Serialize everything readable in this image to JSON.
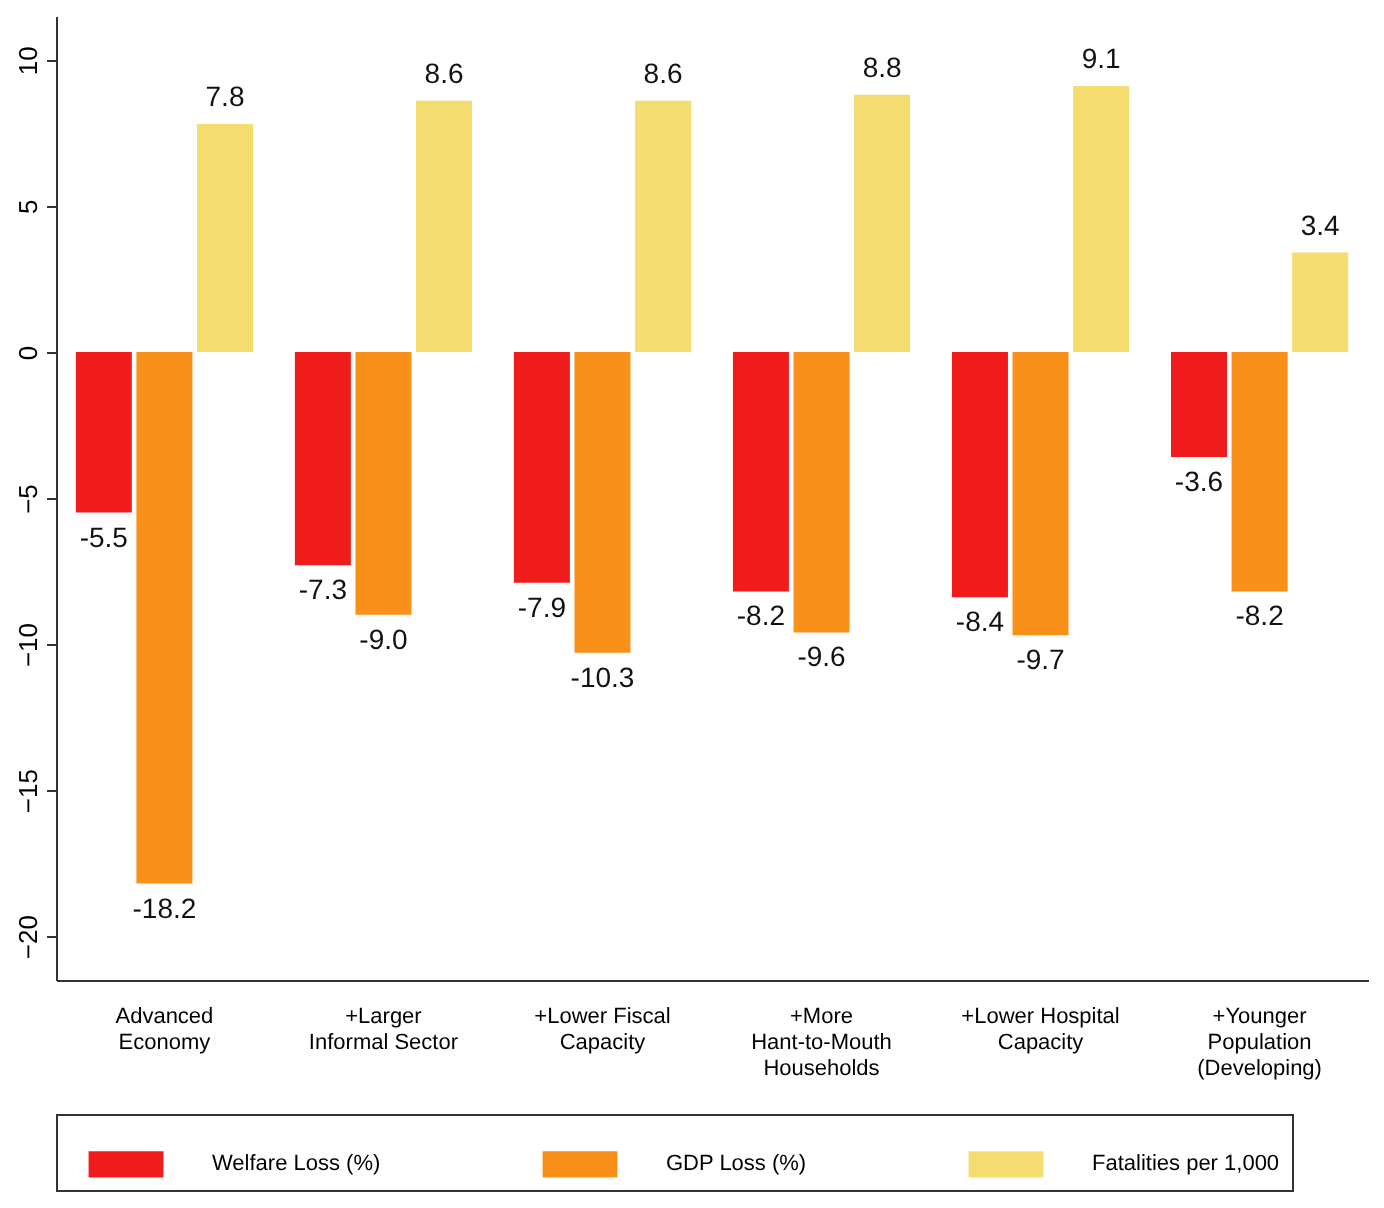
{
  "chart_data": {
    "type": "bar",
    "categories": [
      "Advanced\nEconomy",
      "+Larger\nInformal Sector",
      "+Lower Fiscal\nCapacity",
      "+More\nHant-to-Mouth\nHouseholds",
      "+Lower Hospital\nCapacity",
      "+Younger\nPopulation\n(Developing)"
    ],
    "series": [
      {
        "name": "Welfare Loss (%)",
        "color": "#f01c1c",
        "values": [
          -5.5,
          -7.3,
          -7.9,
          -8.2,
          -8.4,
          -3.6
        ],
        "value_labels": [
          "-5.5",
          "-7.3",
          "-7.9",
          "-8.2",
          "-8.4",
          "-3.6"
        ]
      },
      {
        "name": "GDP Loss (%)",
        "color": "#f8901a",
        "values": [
          -18.2,
          -9.0,
          -10.3,
          -9.6,
          -9.7,
          -8.2
        ],
        "value_labels": [
          "-18.2",
          "-9.0",
          "-10.3",
          "-9.6",
          "-9.7",
          "-8.2"
        ]
      },
      {
        "name": "Fatalities per 1,000",
        "color": "#f5dc6e",
        "values": [
          7.8,
          8.6,
          8.6,
          8.8,
          9.1,
          3.4
        ],
        "value_labels": [
          "7.8",
          "8.6",
          "8.6",
          "8.8",
          "9.1",
          "3.4"
        ]
      }
    ],
    "ylim": [
      -21.5,
      11.5
    ],
    "yticks": [
      -20,
      -15,
      -10,
      -5,
      0,
      5,
      10
    ],
    "grid": false,
    "legend": "bottom"
  }
}
